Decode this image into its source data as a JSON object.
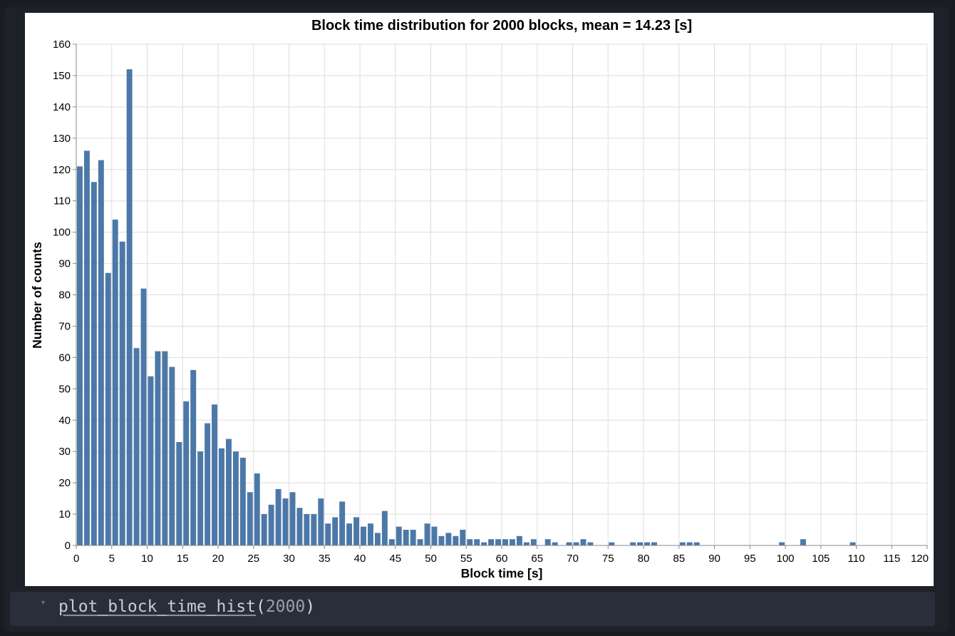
{
  "code_cell": {
    "indicator": "▾",
    "function_name": "plot_block_time_hist",
    "open_paren": "(",
    "argument": "2000",
    "close_paren": ")"
  },
  "chart_data": {
    "type": "bar",
    "title": "Block time distribution for 2000 blocks, mean = 14.23 [s]",
    "xlabel": "Block time [s]",
    "ylabel": "Number of counts",
    "xlim": [
      0,
      120
    ],
    "ylim": [
      0,
      160
    ],
    "grid": true,
    "bar_color": "#4c78a8",
    "x_ticks": [
      0,
      5,
      10,
      15,
      20,
      25,
      30,
      35,
      40,
      45,
      50,
      55,
      60,
      65,
      70,
      75,
      80,
      85,
      90,
      95,
      100,
      105,
      110,
      115,
      120
    ],
    "y_ticks": [
      0,
      10,
      20,
      30,
      40,
      50,
      60,
      70,
      80,
      90,
      100,
      110,
      120,
      130,
      140,
      150,
      160
    ],
    "x": [
      0,
      1,
      2,
      3,
      4,
      5,
      6,
      7,
      8,
      9,
      10,
      11,
      12,
      13,
      14,
      15,
      16,
      17,
      18,
      19,
      20,
      21,
      22,
      23,
      24,
      25,
      26,
      27,
      28,
      29,
      30,
      31,
      32,
      33,
      34,
      35,
      36,
      37,
      38,
      39,
      40,
      41,
      42,
      43,
      44,
      45,
      46,
      47,
      48,
      49,
      50,
      51,
      52,
      53,
      54,
      55,
      56,
      57,
      58,
      59,
      60,
      61,
      62,
      63,
      64,
      66,
      67,
      69,
      70,
      71,
      72,
      75,
      78,
      79,
      80,
      81,
      85,
      86,
      87,
      99,
      102,
      109
    ],
    "values": [
      121,
      126,
      116,
      123,
      87,
      104,
      97,
      152,
      63,
      82,
      54,
      62,
      62,
      57,
      33,
      46,
      56,
      30,
      39,
      45,
      31,
      34,
      30,
      28,
      17,
      23,
      10,
      13,
      18,
      15,
      17,
      12,
      10,
      10,
      15,
      7,
      9,
      14,
      7,
      9,
      6,
      7,
      4,
      11,
      2,
      6,
      5,
      5,
      2,
      7,
      6,
      3,
      4,
      3,
      5,
      2,
      2,
      1,
      2,
      2,
      2,
      2,
      3,
      1,
      2,
      2,
      1,
      1,
      1,
      2,
      1,
      1,
      1,
      1,
      1,
      1,
      1,
      1,
      1,
      1,
      2,
      1
    ]
  }
}
